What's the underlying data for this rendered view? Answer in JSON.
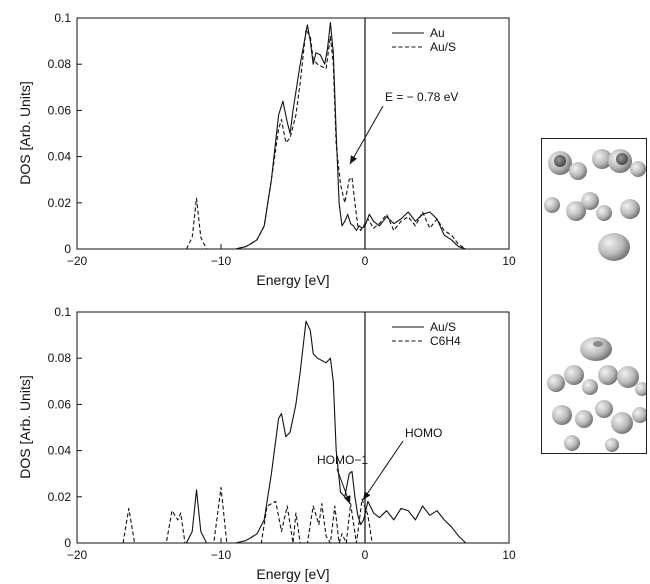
{
  "chart_data": [
    {
      "type": "line",
      "xlabel": "Energy [eV]",
      "ylabel": "DOS [Arb. Units]",
      "xlim": [
        -20,
        10
      ],
      "ylim": [
        0,
        0.1
      ],
      "xticks": [
        -20,
        -10,
        0,
        10
      ],
      "yticks": [
        0,
        0.02,
        0.04,
        0.06,
        0.08,
        0.1
      ],
      "xtick_labels": [
        "−20",
        "−10",
        "0",
        "10"
      ],
      "ytick_labels": [
        "0",
        "0.02",
        "0.04",
        "0.06",
        "0.08",
        "0.1"
      ],
      "legend_position": "top-right",
      "vline_x": 0,
      "series": [
        {
          "name": "Au",
          "style": "solid",
          "x": [
            -9.0,
            -8.3,
            -8.0,
            -7.5,
            -7.0,
            -6.5,
            -6.0,
            -5.7,
            -5.4,
            -5.2,
            -5.0,
            -4.5,
            -4.0,
            -3.8,
            -3.6,
            -3.4,
            -3.1,
            -2.8,
            -2.6,
            -2.4,
            -2.2,
            -2.0,
            -1.8,
            -1.6,
            -1.4,
            -1.2,
            -1.0,
            -0.8,
            -0.6,
            -0.4,
            -0.2,
            0.0,
            0.3,
            0.6,
            1.0,
            1.5,
            2.0,
            2.5,
            3.0,
            3.5,
            4.0,
            4.5,
            5.0,
            5.5,
            6.0,
            6.5,
            7.0
          ],
          "y": [
            0.0,
            0.001,
            0.002,
            0.004,
            0.01,
            0.03,
            0.058,
            0.064,
            0.055,
            0.05,
            0.06,
            0.08,
            0.097,
            0.09,
            0.08,
            0.085,
            0.084,
            0.08,
            0.087,
            0.098,
            0.085,
            0.05,
            0.02,
            0.01,
            0.012,
            0.015,
            0.011,
            0.01,
            0.008,
            0.01,
            0.009,
            0.01,
            0.015,
            0.012,
            0.01,
            0.014,
            0.011,
            0.013,
            0.016,
            0.012,
            0.015,
            0.016,
            0.013,
            0.006,
            0.004,
            0.001,
            0.0
          ]
        },
        {
          "name": "Au/S",
          "style": "dashed",
          "x": [
            -12.4,
            -12.0,
            -11.7,
            -11.4,
            -11.0,
            -9.0,
            -8.3,
            -8.0,
            -7.5,
            -7.0,
            -6.5,
            -6.0,
            -5.8,
            -5.5,
            -5.2,
            -4.8,
            -4.5,
            -4.1,
            -3.8,
            -3.6,
            -3.3,
            -3.0,
            -2.7,
            -2.4,
            -2.2,
            -2.0,
            -1.7,
            -1.4,
            -1.1,
            -0.9,
            -0.7,
            -0.5,
            -0.3,
            -0.1,
            0.2,
            0.6,
            1.0,
            1.5,
            2.0,
            2.5,
            3.0,
            3.5,
            4.0,
            4.5,
            5.0,
            5.5,
            6.0,
            6.5,
            7.0
          ],
          "y": [
            0.0,
            0.005,
            0.022,
            0.005,
            0.0,
            0.0,
            0.001,
            0.002,
            0.004,
            0.01,
            0.03,
            0.052,
            0.056,
            0.046,
            0.048,
            0.058,
            0.072,
            0.095,
            0.092,
            0.082,
            0.08,
            0.079,
            0.078,
            0.092,
            0.08,
            0.045,
            0.028,
            0.02,
            0.03,
            0.031,
            0.02,
            0.01,
            0.008,
            0.01,
            0.013,
            0.009,
            0.011,
            0.015,
            0.008,
            0.012,
            0.014,
            0.01,
            0.016,
            0.009,
            0.013,
            0.008,
            0.006,
            0.002,
            0.0
          ]
        }
      ],
      "annotations": [
        {
          "text": "E = − 0.78 eV",
          "x": -0.78,
          "y": 0.056
        }
      ]
    },
    {
      "type": "line",
      "xlabel": "Energy [eV]",
      "ylabel": "DOS [Arb. Units]",
      "xlim": [
        -20,
        10
      ],
      "ylim": [
        0,
        0.1
      ],
      "xticks": [
        -20,
        -10,
        0,
        10
      ],
      "yticks": [
        0,
        0.02,
        0.04,
        0.06,
        0.08,
        0.1
      ],
      "xtick_labels": [
        "−20",
        "−10",
        "0",
        "10"
      ],
      "ytick_labels": [
        "0",
        "0.02",
        "0.04",
        "0.06",
        "0.08",
        "0.1"
      ],
      "legend_position": "top-right",
      "vline_x": 0,
      "series": [
        {
          "name": "Au/S",
          "style": "solid",
          "x": [
            -12.4,
            -12.0,
            -11.7,
            -11.4,
            -11.0,
            -9.0,
            -8.3,
            -8.0,
            -7.5,
            -7.0,
            -6.5,
            -6.0,
            -5.8,
            -5.5,
            -5.2,
            -4.8,
            -4.5,
            -4.1,
            -3.8,
            -3.6,
            -3.3,
            -3.0,
            -2.7,
            -2.4,
            -2.2,
            -2.0,
            -1.7,
            -1.4,
            -1.1,
            -0.9,
            -0.7,
            -0.5,
            -0.3,
            -0.1,
            0.2,
            0.6,
            1.0,
            1.5,
            2.0,
            2.5,
            3.0,
            3.5,
            4.0,
            4.5,
            5.0,
            5.5,
            6.0,
            6.5,
            7.0
          ],
          "y": [
            0.0,
            0.005,
            0.023,
            0.005,
            0.0,
            0.0,
            0.001,
            0.002,
            0.004,
            0.01,
            0.03,
            0.054,
            0.056,
            0.046,
            0.048,
            0.06,
            0.074,
            0.096,
            0.092,
            0.082,
            0.08,
            0.079,
            0.078,
            0.08,
            0.07,
            0.04,
            0.022,
            0.02,
            0.03,
            0.031,
            0.02,
            0.012,
            0.008,
            0.01,
            0.018,
            0.013,
            0.011,
            0.014,
            0.01,
            0.015,
            0.014,
            0.01,
            0.016,
            0.012,
            0.014,
            0.01,
            0.007,
            0.003,
            0.0
          ]
        },
        {
          "name": "C6H4",
          "style": "dashed",
          "x": [
            -16.8,
            -16.4,
            -16.0,
            -15.0,
            -13.8,
            -13.4,
            -13.0,
            -12.8,
            -12.5,
            -12.0,
            -10.5,
            -10.0,
            -9.6,
            -9.0,
            -8.5,
            -7.2,
            -6.8,
            -6.2,
            -5.8,
            -5.4,
            -5.0,
            -4.8,
            -4.5,
            -4.0,
            -3.6,
            -3.2,
            -3.0,
            -2.7,
            -2.4,
            -2.1,
            -1.8,
            -1.6,
            -1.3,
            -1.0,
            -0.6,
            -0.2,
            0.2,
            0.5,
            1.0,
            2.0
          ],
          "y": [
            0.0,
            0.015,
            0.0,
            0.0,
            0.0,
            0.014,
            0.01,
            0.013,
            0.0,
            0.0,
            0.0,
            0.024,
            0.0,
            0.0,
            0.0,
            0.0,
            0.016,
            0.018,
            0.005,
            0.016,
            0.0,
            0.013,
            0.0,
            0.0,
            0.016,
            0.008,
            0.017,
            0.003,
            0.0,
            0.016,
            0.0,
            0.004,
            0.0,
            0.017,
            0.0,
            0.019,
            0.012,
            0.0,
            0.0,
            0.0
          ]
        }
      ],
      "annotations": [
        {
          "text": "HOMO−1",
          "x": -0.9,
          "y": 0.004
        },
        {
          "text": "HOMO",
          "x": -0.2,
          "y": 0.008
        }
      ]
    }
  ]
}
